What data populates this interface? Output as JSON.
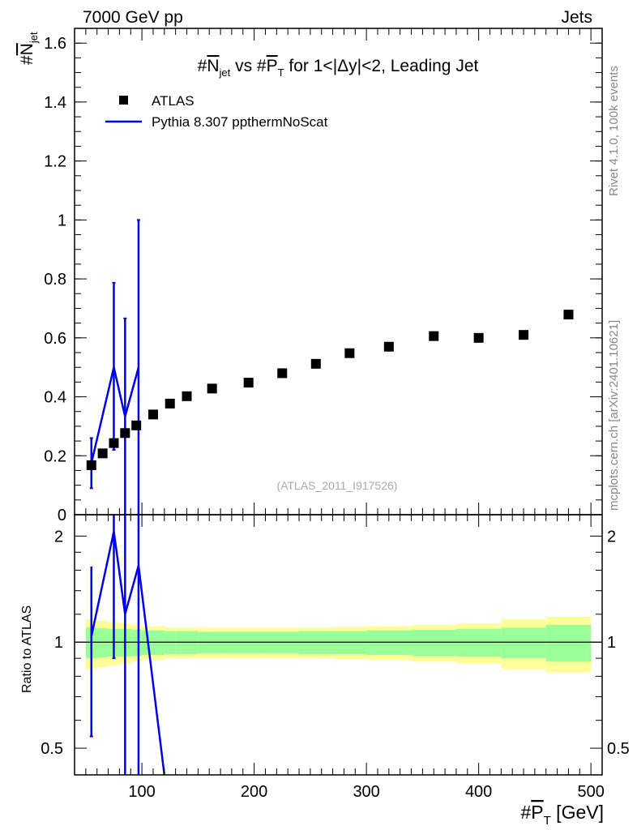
{
  "chart_data": [
    {
      "type": "scatter",
      "panel": "main",
      "header_left": "7000 GeV pp",
      "header_right": "Jets",
      "title": "#N̅jet vs #P̅T for 1<|Δy|<2, Leading Jet",
      "title_parts": {
        "hash1": "#",
        "n": "N",
        "n_sub": "jet",
        "mid": " vs #",
        "p": "P",
        "p_sub": "T",
        "tail": " for 1<|Δy|<2, Leading Jet"
      },
      "ylabel": "#N̅jet",
      "ylabel_parts": {
        "hash": "#",
        "n": "N",
        "sub": "jet"
      },
      "xlim": [
        40,
        510
      ],
      "ylim": [
        0,
        1.65
      ],
      "y_ticks": [
        "0",
        "0.2",
        "0.4",
        "0.6",
        "0.8",
        "1",
        "1.2",
        "1.4",
        "1.6"
      ],
      "legend": {
        "placement": "top-left",
        "entries": [
          "ATLAS",
          "Pythia 8.307 ppthermNoScat"
        ]
      },
      "watermark": "(ATLAS_2011_I917526)",
      "series": [
        {
          "name": "ATLAS",
          "marker": "square",
          "color": "#000000",
          "x": [
            55,
            65,
            75,
            85,
            95,
            110,
            125,
            140,
            162.5,
            195,
            225,
            255,
            285,
            320,
            360,
            400,
            440,
            480
          ],
          "y": [
            0.168,
            0.208,
            0.243,
            0.277,
            0.303,
            0.34,
            0.377,
            0.402,
            0.428,
            0.448,
            0.48,
            0.512,
            0.548,
            0.57,
            0.606,
            0.6,
            0.61,
            0.679
          ]
        },
        {
          "name": "Pythia 8.307 ppthermNoScat",
          "marker": "line",
          "color": "#0000ee",
          "x": [
            55,
            75,
            85,
            97
          ],
          "y": [
            0.175,
            0.5,
            0.333,
            0.5
          ],
          "err_lo": [
            0.085,
            0.28,
            0.333,
            0.5
          ],
          "err_hi": [
            0.085,
            0.287,
            0.333,
            0.5
          ]
        }
      ]
    },
    {
      "type": "line",
      "panel": "ratio",
      "ylabel": "Ratio to ATLAS",
      "xlabel": "#P̅T [GeV]",
      "xlabel_parts": {
        "hash": "#",
        "p": "P",
        "sub": "T",
        "unit": " [GeV]"
      },
      "xlim": [
        40,
        510
      ],
      "ylim": [
        0.42,
        2.3
      ],
      "y_scale": "log",
      "x_ticks": [
        "100",
        "200",
        "300",
        "400",
        "500"
      ],
      "y_ticks": [
        "0.5",
        "1",
        "2"
      ],
      "reference_line": 1,
      "band_edges": [
        50,
        60,
        70,
        80,
        90,
        100,
        120,
        130,
        150,
        175,
        210,
        240,
        270,
        300,
        340,
        380,
        420,
        460,
        500
      ],
      "band_inner": [
        0.1,
        0.095,
        0.09,
        0.09,
        0.085,
        0.08,
        0.075,
        0.075,
        0.07,
        0.07,
        0.07,
        0.075,
        0.075,
        0.08,
        0.085,
        0.09,
        0.1,
        0.12,
        0.13
      ],
      "band_outer": [
        0.16,
        0.15,
        0.14,
        0.13,
        0.12,
        0.11,
        0.1,
        0.1,
        0.1,
        0.1,
        0.1,
        0.1,
        0.105,
        0.11,
        0.12,
        0.13,
        0.16,
        0.18,
        0.19
      ],
      "series": [
        {
          "name": "Pythia 8.307 ppthermNoScat",
          "color": "#0000ee",
          "x": [
            55,
            75,
            85,
            97,
            120
          ],
          "y": [
            1.04,
            2.06,
            1.2,
            1.65,
            0.42
          ],
          "err_lo": [
            0.5,
            1.16,
            1.2,
            1.65,
            0
          ],
          "err_hi": [
            0.6,
            1.3,
            1.2,
            1.65,
            0
          ]
        }
      ]
    }
  ],
  "side_text": {
    "rivet": "Rivet 4.1.0,  100k events",
    "mcplots": "mcplots.cern.ch [arXiv:2401.10621]"
  }
}
